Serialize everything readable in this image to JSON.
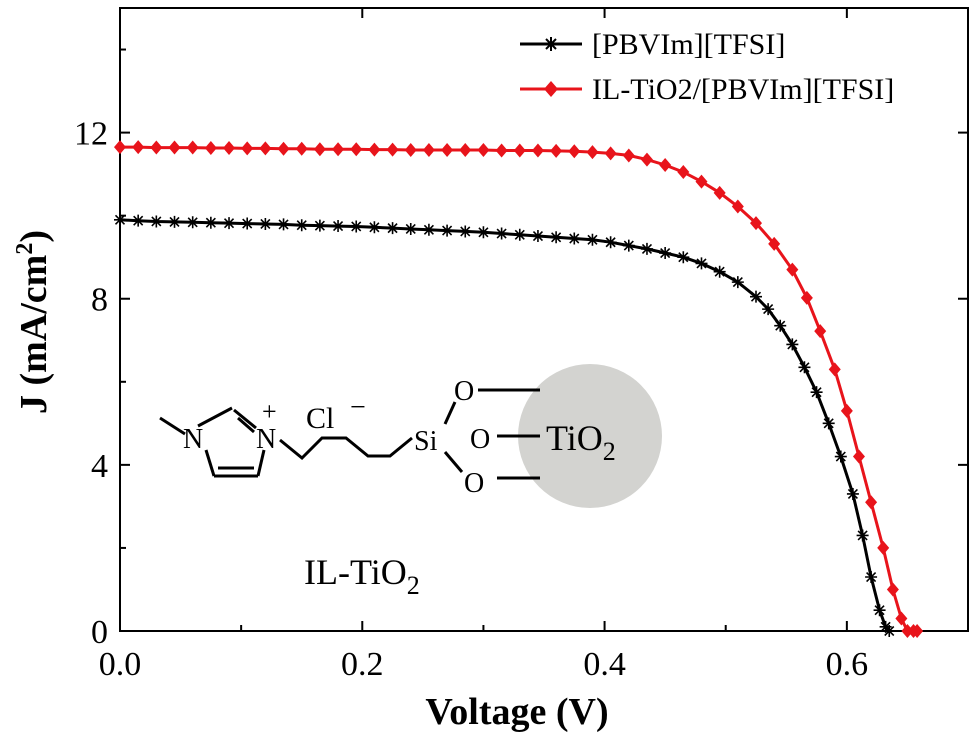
{
  "chart_data": {
    "type": "line",
    "xlabel": "Voltage (V)",
    "ylabel_main": "J (mA/cm",
    "ylabel_sup": "2",
    "ylabel_close": ")",
    "xlim": [
      0,
      0.7
    ],
    "ylim": [
      0,
      15
    ],
    "xticks": [
      0.0,
      0.2,
      0.4,
      0.6
    ],
    "xtick_labels": [
      "0.0",
      "0.2",
      "0.4",
      "0.6"
    ],
    "yticks": [
      0,
      4,
      8,
      12
    ],
    "ytick_labels": [
      "0",
      "4",
      "8",
      "12"
    ],
    "legend_position": "top-right",
    "series": [
      {
        "name": "[PBVIm][TFSI]",
        "color": "#000000",
        "marker": "asterisk",
        "x": [
          0.0,
          0.015,
          0.03,
          0.045,
          0.06,
          0.075,
          0.09,
          0.105,
          0.12,
          0.135,
          0.15,
          0.165,
          0.18,
          0.195,
          0.21,
          0.225,
          0.24,
          0.255,
          0.27,
          0.285,
          0.3,
          0.315,
          0.33,
          0.345,
          0.36,
          0.375,
          0.39,
          0.405,
          0.42,
          0.435,
          0.45,
          0.465,
          0.48,
          0.495,
          0.51,
          0.525,
          0.535,
          0.545,
          0.555,
          0.565,
          0.575,
          0.585,
          0.595,
          0.605,
          0.613,
          0.62,
          0.627,
          0.632,
          0.635
        ],
        "y": [
          9.9,
          9.88,
          9.86,
          9.85,
          9.84,
          9.83,
          9.82,
          9.81,
          9.8,
          9.79,
          9.77,
          9.76,
          9.75,
          9.74,
          9.72,
          9.7,
          9.68,
          9.66,
          9.64,
          9.62,
          9.6,
          9.57,
          9.54,
          9.51,
          9.48,
          9.45,
          9.42,
          9.36,
          9.28,
          9.2,
          9.1,
          9.0,
          8.85,
          8.65,
          8.4,
          8.05,
          7.75,
          7.35,
          6.9,
          6.35,
          5.75,
          5.0,
          4.2,
          3.3,
          2.3,
          1.3,
          0.5,
          0.1,
          0.0
        ]
      },
      {
        "name": "IL-TiO2/[PBVIm][TFSI]",
        "color": "#e8141b",
        "marker": "diamond",
        "x": [
          0.0,
          0.015,
          0.03,
          0.045,
          0.06,
          0.075,
          0.09,
          0.105,
          0.12,
          0.135,
          0.15,
          0.165,
          0.18,
          0.195,
          0.21,
          0.225,
          0.24,
          0.255,
          0.27,
          0.285,
          0.3,
          0.315,
          0.33,
          0.345,
          0.36,
          0.375,
          0.39,
          0.405,
          0.42,
          0.435,
          0.45,
          0.465,
          0.48,
          0.495,
          0.51,
          0.525,
          0.54,
          0.555,
          0.567,
          0.578,
          0.59,
          0.6,
          0.61,
          0.62,
          0.63,
          0.638,
          0.645,
          0.65,
          0.655,
          0.658
        ],
        "y": [
          11.65,
          11.65,
          11.64,
          11.64,
          11.64,
          11.63,
          11.63,
          11.62,
          11.62,
          11.61,
          11.61,
          11.6,
          11.6,
          11.6,
          11.59,
          11.59,
          11.58,
          11.58,
          11.58,
          11.58,
          11.58,
          11.57,
          11.57,
          11.57,
          11.56,
          11.55,
          11.53,
          11.5,
          11.45,
          11.35,
          11.22,
          11.05,
          10.82,
          10.55,
          10.22,
          9.82,
          9.32,
          8.7,
          8.02,
          7.22,
          6.3,
          5.3,
          4.2,
          3.1,
          2.0,
          1.0,
          0.3,
          0.0,
          0.0,
          0.0
        ]
      }
    ],
    "inset": {
      "label_main": "IL-TiO",
      "label_sub": "2",
      "counter_ion": "Cl",
      "charge_minus": "−",
      "charge_plus": "+",
      "atom_n": "N",
      "atom_si": "Si",
      "atom_o": "O",
      "particle_main": "TiO",
      "particle_sub": "2"
    }
  }
}
